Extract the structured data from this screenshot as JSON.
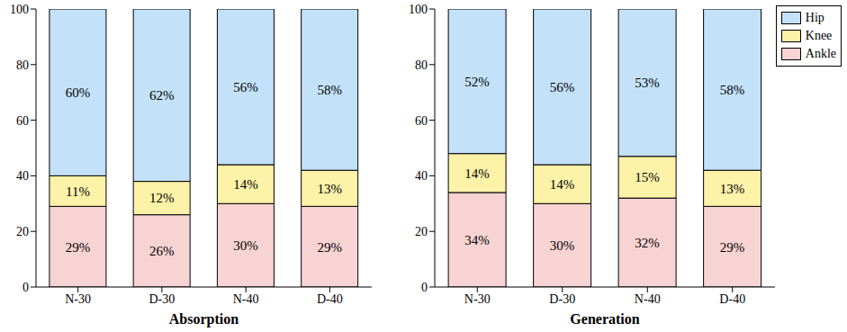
{
  "chart_data": [
    {
      "type": "bar",
      "x_label": "Absorption",
      "stacked": true,
      "data_labels": true,
      "categories": [
        "N-30",
        "D-30",
        "N-40",
        "D-40"
      ],
      "ylim": [
        0,
        100
      ],
      "yticks": [
        0,
        20,
        40,
        60,
        80,
        100
      ],
      "series": [
        {
          "name": "Ankle",
          "color": "#f8d3d3",
          "values": [
            29,
            26,
            30,
            29
          ],
          "value_labels": [
            "29%",
            "26%",
            "30%",
            "29%"
          ]
        },
        {
          "name": "Knee",
          "color": "#fcf2a8",
          "values": [
            11,
            12,
            14,
            13
          ],
          "value_labels": [
            "11%",
            "12%",
            "14%",
            "13%"
          ]
        },
        {
          "name": "Hip",
          "color": "#c3e1f8",
          "values": [
            60,
            62,
            56,
            58
          ],
          "value_labels": [
            "60%",
            "62%",
            "56%",
            "58%"
          ]
        }
      ]
    },
    {
      "type": "bar",
      "x_label": "Generation",
      "stacked": true,
      "data_labels": true,
      "legend": "upper right",
      "categories": [
        "N-30",
        "D-30",
        "N-40",
        "D-40"
      ],
      "ylim": [
        0,
        100
      ],
      "yticks": [
        0,
        20,
        40,
        60,
        80,
        100
      ],
      "series": [
        {
          "name": "Ankle",
          "color": "#f8d3d3",
          "values": [
            34,
            30,
            32,
            29
          ],
          "value_labels": [
            "34%",
            "30%",
            "32%",
            "29%"
          ]
        },
        {
          "name": "Knee",
          "color": "#fcf2a8",
          "values": [
            14,
            14,
            15,
            13
          ],
          "value_labels": [
            "14%",
            "14%",
            "15%",
            "13%"
          ]
        },
        {
          "name": "Hip",
          "color": "#c3e1f8",
          "values": [
            52,
            56,
            53,
            58
          ],
          "value_labels": [
            "52%",
            "56%",
            "53%",
            "58%"
          ]
        }
      ]
    }
  ]
}
